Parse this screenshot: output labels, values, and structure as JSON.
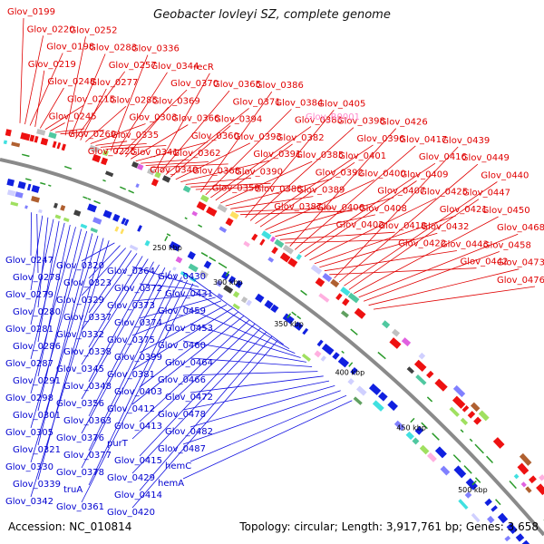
{
  "title": "Geobacter lovleyi SZ, complete genome",
  "accession": "Accession: NC_010814",
  "summary": "Topology: circular; Length: 3,917,761 bp; Genes: 3,658",
  "colors": {
    "forward_strand": "#e00000",
    "reverse_strand": "#0000d0",
    "rna_label": "#ff88cc",
    "backbone": "#888888",
    "tick": "#2a9a2a"
  },
  "ticks": [
    "250 kbp",
    "300 kbp",
    "350 kbp",
    "400 kbp",
    "450 kbp",
    "500 kbp"
  ],
  "forward_labels": [
    "Glov_0199",
    "Glov_0220",
    "Glov_0198",
    "Glov_0219",
    "Glov_0248",
    "Glov_0215",
    "Glov_0245",
    "Glov_0269",
    "Glov_0225",
    "Glov_0252",
    "Glov_0283",
    "Glov_0257",
    "Glov_0277",
    "Glov_0285",
    "Glov_0303",
    "Glov_0335",
    "Glov_0341",
    "Glov_0340",
    "Glov_0336",
    "Glov_0344",
    "Glov_0370",
    "Glov_0369",
    "Glov_0366",
    "Glov_0360",
    "Glov_0362",
    "Glov_0368",
    "Glov_0359",
    "recR",
    "Glov_0365",
    "Glov_0371",
    "Glov_0394",
    "Glov_0393",
    "Glov_0391",
    "Glov_0390",
    "Glov_0388",
    "Glov_0387",
    "Glov_0386",
    "Glov_0384",
    "Glov_0383",
    "Glov_0382",
    "Glov_0385",
    "Glov_0392",
    "Glov_0389",
    "Glov_0406",
    "Glov_0402",
    "Glov_0405",
    "Glov_0398",
    "Glov_0396",
    "Glov_0401",
    "Glov_0400",
    "Glov_0407",
    "Glov_0408",
    "Glov_0418",
    "Glov_0422",
    "Glov_0426",
    "Glov_0417",
    "Glov_0416",
    "Glov_0409",
    "Glov_0425",
    "Glov_0421",
    "Glov_0432",
    "Glov_0443",
    "Glov_0442",
    "Glov_0439",
    "Glov_0449",
    "Glov_0440",
    "Glov_0447",
    "Glov_0450",
    "Glov_0468",
    "Glov_0458",
    "Glov_0473",
    "Glov_0476"
  ],
  "rna_labels": [
    "Glov_R0001"
  ],
  "reverse_labels": [
    "Glov_0247",
    "Glov_0278",
    "Glov_0279",
    "Glov_0280",
    "Glov_0281",
    "Glov_0286",
    "Glov_0287",
    "Glov_0291",
    "Glov_0298",
    "Glov_0301",
    "Glov_0305",
    "Glov_0321",
    "Glov_0330",
    "Glov_0339",
    "Glov_0342",
    "Glov_0320",
    "Glov_0323",
    "Glov_0329",
    "Glov_0337",
    "Glov_0332",
    "Glov_0338",
    "Glov_0345",
    "Glov_0348",
    "Glov_0356",
    "Glov_0363",
    "Glov_0376",
    "Glov_0377",
    "Glov_0378",
    "truA",
    "Glov_0361",
    "Glov_0364",
    "Glov_0372",
    "Glov_0373",
    "Glov_0374",
    "Glov_0375",
    "Glov_0399",
    "Glov_0381",
    "Glov_0403",
    "Glov_0412",
    "Glov_0413",
    "purT",
    "Glov_0415",
    "Glov_0429",
    "Glov_0414",
    "Glov_0420",
    "Glov_0430",
    "Glov_0431",
    "Glov_0459",
    "Glov_0453",
    "Glov_0460",
    "Glov_0464",
    "Glov_0466",
    "Glov_0472",
    "Glov_0478",
    "Glov_0482",
    "Glov_0487",
    "hemC",
    "hemA"
  ]
}
